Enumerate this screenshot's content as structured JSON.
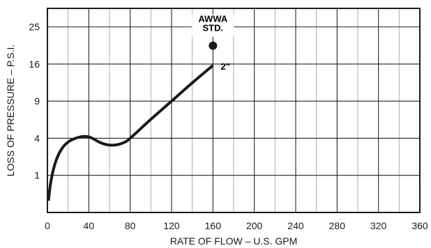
{
  "chart_data": {
    "type": "line",
    "xlabel": "RATE OF FLOW – U.S. GPM",
    "ylabel": "LOSS OF PRESSURE – P.S.I.",
    "xlim": [
      0,
      360
    ],
    "xticks": [
      0,
      40,
      80,
      120,
      160,
      200,
      240,
      280,
      320,
      360
    ],
    "x_minor_step": 20,
    "y_scale": "sqrt",
    "ylim": [
      0,
      30.25
    ],
    "yticks": [
      1,
      4,
      9,
      16,
      25
    ],
    "y_gridlines": [
      1,
      4,
      9,
      16,
      25
    ],
    "grid": true,
    "series": [
      {
        "name": "2\"",
        "x": [
          1,
          3,
          6,
          10,
          15,
          20,
          25,
          30,
          35,
          40,
          45,
          50,
          55,
          60,
          65,
          70,
          75,
          80,
          100,
          120,
          140,
          160
        ],
        "y": [
          0.1,
          0.6,
          1.4,
          2.3,
          3.1,
          3.6,
          3.9,
          4.1,
          4.2,
          4.15,
          3.9,
          3.6,
          3.4,
          3.3,
          3.3,
          3.4,
          3.6,
          4.0,
          6.3,
          9.0,
          12.2,
          15.7
        ],
        "color": "#1a1a1a"
      }
    ],
    "points": [
      {
        "name": "AWWA STD.",
        "x": 160,
        "y": 20.2,
        "color": "#1a1a1a"
      }
    ],
    "annotations": [
      {
        "text_lines": [
          "AWWA",
          "STD."
        ],
        "x": 160,
        "y": 25
      },
      {
        "text": "2\"",
        "x": 172,
        "y": 14.8
      }
    ]
  }
}
